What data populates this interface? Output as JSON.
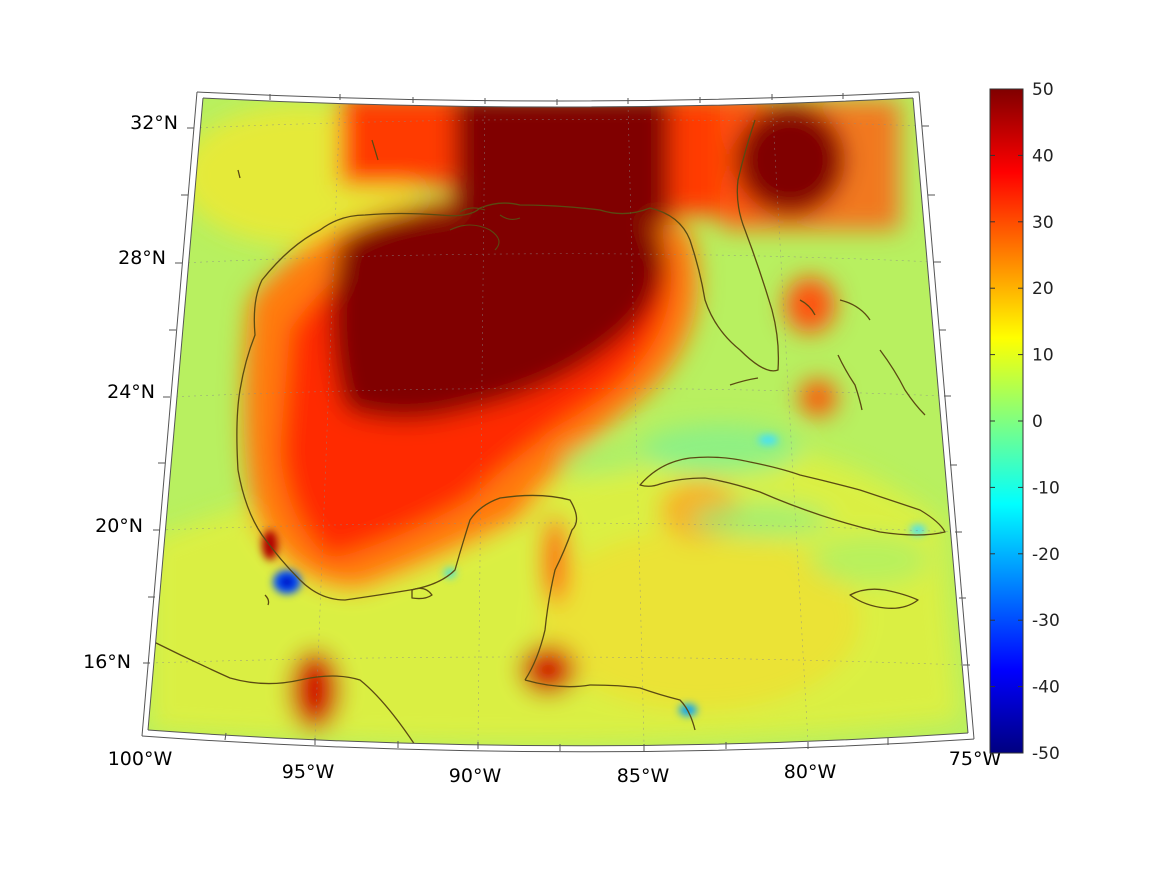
{
  "map": {
    "lon_labels": [
      "100°W",
      "95°W",
      "90°W",
      "85°W",
      "80°W",
      "75°W"
    ],
    "lat_labels": [
      "32°N",
      "28°N",
      "24°N",
      "20°N",
      "16°N"
    ]
  },
  "colorbar": {
    "ticks": [
      "50",
      "40",
      "30",
      "20",
      "10",
      "0",
      "-10",
      "-20",
      "-30",
      "-40",
      "-50"
    ],
    "min": -50,
    "max": 50,
    "colormap": "jet"
  },
  "colors": {
    "coastline": "#5a4a12",
    "saturated_high": "#800000",
    "background_field": "#b8f060"
  }
}
